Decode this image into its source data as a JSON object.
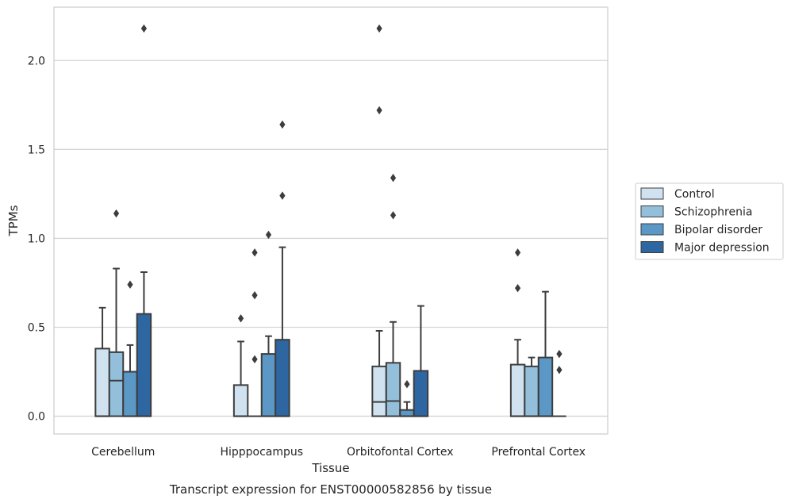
{
  "chart_data": {
    "type": "boxplot",
    "title": "",
    "caption": "Transcript expression for ENST00000582856 by tissue",
    "xlabel": "Tissue",
    "ylabel": "TPMs",
    "ylim": [
      -0.1,
      2.3
    ],
    "yticks": [
      0.0,
      0.5,
      1.0,
      1.5,
      2.0
    ],
    "ytick_labels": [
      "0.0",
      "0.5",
      "1.0",
      "1.5",
      "2.0"
    ],
    "grid": "horizontal",
    "legend_position": "right",
    "categories": [
      "Cerebellum",
      "Hipppocampus",
      "Orbitofontal Cortex",
      "Prefrontal Cortex"
    ],
    "series": [
      {
        "name": "Control",
        "color": "#d0e1f0",
        "boxes": [
          {
            "q1": 0.0,
            "median": 0.0,
            "q3": 0.38,
            "whisker_low": 0.0,
            "whisker_high": 0.61,
            "outliers": []
          },
          {
            "q1": 0.0,
            "median": 0.0,
            "q3": 0.175,
            "whisker_low": 0.0,
            "whisker_high": 0.42,
            "outliers": [
              0.55
            ]
          },
          {
            "q1": 0.0,
            "median": 0.08,
            "q3": 0.28,
            "whisker_low": 0.0,
            "whisker_high": 0.48,
            "outliers": [
              1.72,
              2.18
            ]
          },
          {
            "q1": 0.0,
            "median": 0.0,
            "q3": 0.29,
            "whisker_low": 0.0,
            "whisker_high": 0.43,
            "outliers": [
              0.72,
              0.92
            ]
          }
        ]
      },
      {
        "name": "Schizophrenia",
        "color": "#94bfdb",
        "boxes": [
          {
            "q1": 0.0,
            "median": 0.2,
            "q3": 0.36,
            "whisker_low": 0.0,
            "whisker_high": 0.83,
            "outliers": [
              1.14
            ]
          },
          {
            "q1": 0.0,
            "median": 0.0,
            "q3": 0.0,
            "whisker_low": 0.0,
            "whisker_high": 0.0,
            "outliers": [
              0.32,
              0.68,
              0.92
            ]
          },
          {
            "q1": 0.0,
            "median": 0.085,
            "q3": 0.3,
            "whisker_low": 0.0,
            "whisker_high": 0.53,
            "outliers": [
              1.13,
              1.34
            ]
          },
          {
            "q1": 0.0,
            "median": 0.0,
            "q3": 0.28,
            "whisker_low": 0.0,
            "whisker_high": 0.33,
            "outliers": []
          }
        ]
      },
      {
        "name": "Bipolar disorder",
        "color": "#5b98c6",
        "boxes": [
          {
            "q1": 0.0,
            "median": 0.0,
            "q3": 0.25,
            "whisker_low": 0.0,
            "whisker_high": 0.4,
            "outliers": [
              0.74
            ]
          },
          {
            "q1": 0.0,
            "median": 0.0,
            "q3": 0.35,
            "whisker_low": 0.0,
            "whisker_high": 0.45,
            "outliers": [
              1.02
            ]
          },
          {
            "q1": 0.0,
            "median": 0.0,
            "q3": 0.035,
            "whisker_low": 0.0,
            "whisker_high": 0.08,
            "outliers": [
              0.18
            ]
          },
          {
            "q1": 0.0,
            "median": 0.0,
            "q3": 0.33,
            "whisker_low": 0.0,
            "whisker_high": 0.7,
            "outliers": []
          }
        ]
      },
      {
        "name": "Major depression",
        "color": "#2d66a1",
        "boxes": [
          {
            "q1": 0.0,
            "median": 0.0,
            "q3": 0.575,
            "whisker_low": 0.0,
            "whisker_high": 0.81,
            "outliers": [
              2.18
            ]
          },
          {
            "q1": 0.0,
            "median": 0.0,
            "q3": 0.43,
            "whisker_low": 0.0,
            "whisker_high": 0.95,
            "outliers": [
              1.24,
              1.64
            ]
          },
          {
            "q1": 0.0,
            "median": 0.0,
            "q3": 0.255,
            "whisker_low": 0.0,
            "whisker_high": 0.62,
            "outliers": []
          },
          {
            "q1": 0.0,
            "median": 0.0,
            "q3": 0.0,
            "whisker_low": 0.0,
            "whisker_high": 0.0,
            "outliers": [
              0.26,
              0.35
            ]
          }
        ]
      }
    ]
  }
}
